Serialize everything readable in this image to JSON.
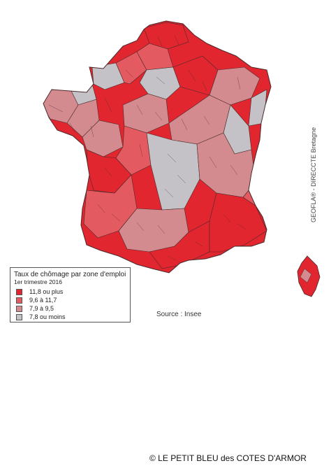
{
  "legend": {
    "title": "Taux de chômage par zone d'emploi",
    "subtitle": "1er trimestre 2016",
    "classes": [
      {
        "label": "11,8 ou plus",
        "color": "#e2262f"
      },
      {
        "label": "9,6 à 11,7",
        "color": "#e35a60"
      },
      {
        "label": "7,9 à  9,5",
        "color": "#d38b8f"
      },
      {
        "label": "7,8 ou moins",
        "color": "#c4c2c6"
      }
    ]
  },
  "source": "Source : Insee",
  "credit": "GEOFLA® - DIRECCTE Bretagne",
  "copyright": "© LE PETIT BLEU des COTES D'ARMOR",
  "colors": {
    "border": "#4a2a2c",
    "background": "#ffffff"
  }
}
